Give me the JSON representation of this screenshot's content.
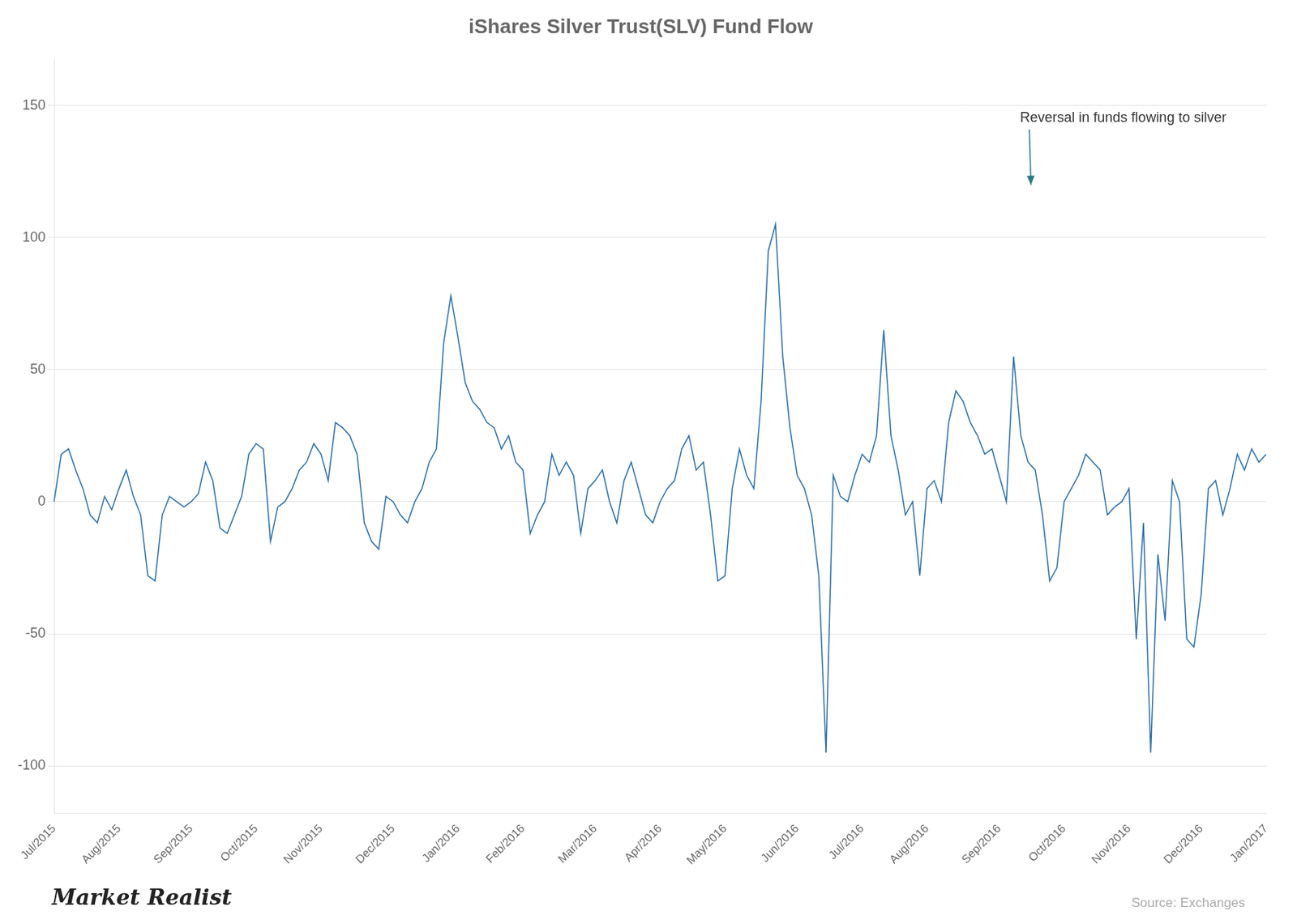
{
  "chart_data": {
    "type": "line",
    "title": "iShares Silver Trust(SLV) Fund Flow",
    "color": "#2b6ea8",
    "grid": true,
    "ylim": [
      -118,
      168
    ],
    "yticks": [
      -100,
      -50,
      0,
      50,
      100,
      150
    ],
    "annotations": [
      {
        "text": "Reversal in funds flowing to silver",
        "color": "#2b7a8a"
      },
      {
        "text": "Market Realist"
      },
      {
        "text": "Source: Exchanges"
      }
    ],
    "categories": [
      "Jul/2015",
      null,
      null,
      null,
      null,
      null,
      null,
      null,
      null,
      "Aug/2015",
      null,
      null,
      null,
      null,
      null,
      null,
      null,
      null,
      null,
      "Sep/2015",
      null,
      null,
      null,
      null,
      null,
      null,
      null,
      null,
      "Oct/2015",
      null,
      null,
      null,
      null,
      null,
      null,
      null,
      null,
      "Nov/2015",
      null,
      null,
      null,
      null,
      null,
      null,
      null,
      null,
      null,
      "Dec/2015",
      null,
      null,
      null,
      null,
      null,
      null,
      null,
      null,
      "Jan/2016",
      null,
      null,
      null,
      null,
      null,
      null,
      null,
      null,
      "Feb/2016",
      null,
      null,
      null,
      null,
      null,
      null,
      null,
      null,
      null,
      "Mar/2016",
      null,
      null,
      null,
      null,
      null,
      null,
      null,
      null,
      "Apr/2016",
      null,
      null,
      null,
      null,
      null,
      null,
      null,
      null,
      "May/2016",
      null,
      null,
      null,
      null,
      null,
      null,
      null,
      null,
      null,
      "Jun/2016",
      null,
      null,
      null,
      null,
      null,
      null,
      null,
      null,
      "Jul/2016",
      null,
      null,
      null,
      null,
      null,
      null,
      null,
      null,
      "Aug/2016",
      null,
      null,
      null,
      null,
      null,
      null,
      null,
      null,
      null,
      "Sep/2016",
      null,
      null,
      null,
      null,
      null,
      null,
      null,
      null,
      "Oct/2016",
      null,
      null,
      null,
      null,
      null,
      null,
      null,
      null,
      "Nov/2016",
      null,
      null,
      null,
      null,
      null,
      null,
      null,
      null,
      null,
      "Dec/2016",
      null,
      null,
      null,
      null,
      null,
      null,
      null,
      null,
      "Jan/2017"
    ],
    "values": [
      0,
      18,
      20,
      12,
      5,
      -5,
      -8,
      2,
      -3,
      5,
      12,
      2,
      -5,
      -28,
      -30,
      -5,
      2,
      0,
      -2,
      0,
      3,
      15,
      8,
      -10,
      -12,
      -5,
      2,
      18,
      22,
      20,
      -15,
      -2,
      0,
      5,
      12,
      15,
      22,
      18,
      8,
      30,
      28,
      25,
      18,
      -8,
      -15,
      -18,
      2,
      0,
      -5,
      -8,
      0,
      5,
      15,
      20,
      60,
      78,
      62,
      45,
      38,
      35,
      30,
      28,
      20,
      25,
      15,
      12,
      -12,
      -5,
      0,
      18,
      10,
      15,
      10,
      -12,
      5,
      8,
      12,
      0,
      -8,
      8,
      15,
      5,
      -5,
      -8,
      0,
      5,
      8,
      20,
      25,
      12,
      15,
      -5,
      -30,
      -28,
      5,
      20,
      10,
      5,
      38,
      95,
      105,
      55,
      28,
      10,
      5,
      -5,
      -28,
      -95,
      10,
      2,
      0,
      10,
      18,
      15,
      25,
      65,
      25,
      12,
      -5,
      0,
      -28,
      5,
      8,
      0,
      30,
      42,
      38,
      30,
      25,
      18,
      20,
      10,
      0,
      55,
      25,
      15,
      12,
      -5,
      -30,
      -25,
      0,
      5,
      10,
      18,
      15,
      12,
      -5,
      -2,
      0,
      5,
      -52,
      -8,
      -95,
      -20,
      -45,
      8,
      0,
      -52,
      -55,
      -35,
      5,
      8,
      -5,
      5,
      18,
      12,
      20,
      15,
      18
    ]
  }
}
